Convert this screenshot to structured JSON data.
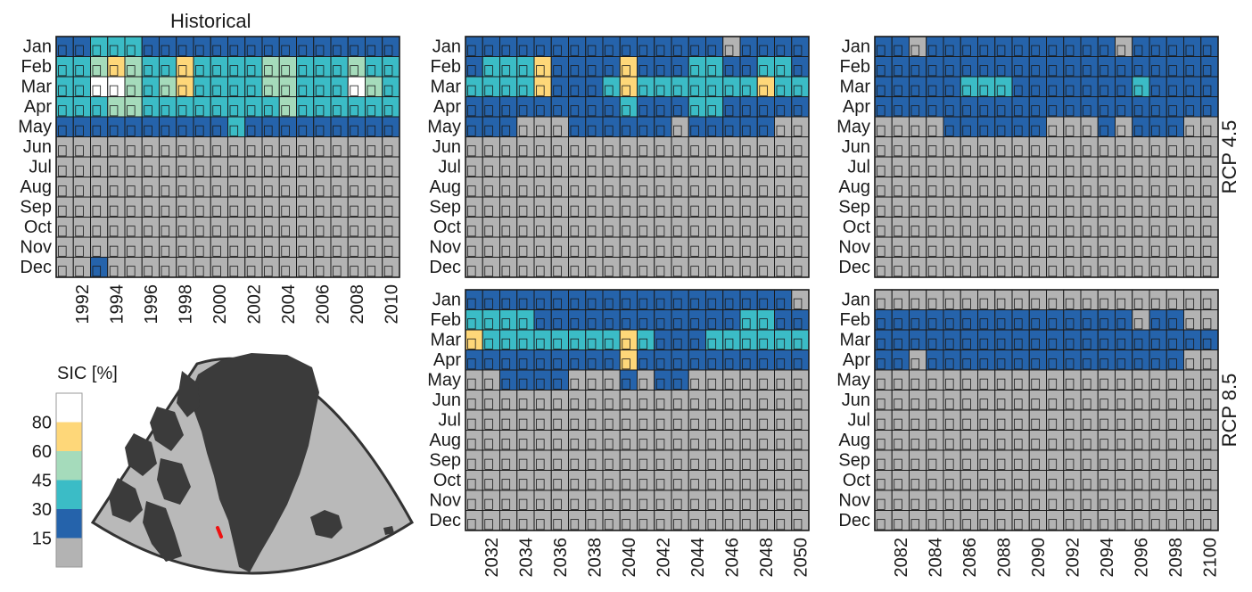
{
  "chart_data": {
    "type": "heatmap",
    "colorbar": {
      "title": "SIC [%]",
      "tick_labels": [
        "15",
        "30",
        "45",
        "60",
        "80"
      ],
      "colors": [
        "#b3b3b3",
        "#2563ab",
        "#3bbcc6",
        "#a5dbbb",
        "#fed779",
        "#ffffff"
      ]
    },
    "months": [
      "Jan",
      "Feb",
      "Mar",
      "Apr",
      "May",
      "Jun",
      "Jul",
      "Aug",
      "Sep",
      "Oct",
      "Nov",
      "Dec"
    ],
    "panels": [
      {
        "id": "hist",
        "title": "Historical",
        "row_label": "",
        "years": [
          1991,
          1992,
          1993,
          1994,
          1995,
          1996,
          1997,
          1998,
          1999,
          2000,
          2001,
          2002,
          2003,
          2004,
          2005,
          2006,
          2007,
          2008,
          2009,
          2010
        ],
        "x_tick_labels": [
          "1992",
          "1994",
          "1996",
          "1998",
          "2000",
          "2002",
          "2004",
          "2006",
          "2008",
          "2010"
        ],
        "class_rows": [
          "11222111111111111111",
          "22343224222233222322",
          "22553234222233222532",
          "22233222222223222222",
          "11111111112111111111",
          "00000000000000000000",
          "00000000000000000000",
          "00000000000000000000",
          "00000000000000000000",
          "00000000000000000000",
          "00000000000000000000",
          "00100000000000000000"
        ]
      },
      {
        "id": "rcp45-mid",
        "title": "",
        "row_label": "RCP 4.5",
        "years": [
          2031,
          2032,
          2033,
          2034,
          2035,
          2036,
          2037,
          2038,
          2039,
          2040,
          2041,
          2042,
          2043,
          2044,
          2045,
          2046,
          2047,
          2048,
          2049,
          2050
        ],
        "x_tick_labels": [],
        "class_rows": [
          "11111111111111101111",
          "12224111141112211221",
          "22224111242222222422",
          "11111111121112211111",
          "11100011111101111100",
          "00000000000000000000",
          "00000000000000000000",
          "00000000000000000000",
          "00000000000000000000",
          "00000000000000000000",
          "00000000000000000000",
          "00000000000000000000"
        ]
      },
      {
        "id": "rcp45-late",
        "title": "",
        "row_label": "",
        "years": [
          2081,
          2082,
          2083,
          2084,
          2085,
          2086,
          2087,
          2088,
          2089,
          2090,
          2091,
          2092,
          2093,
          2094,
          2095,
          2096,
          2097,
          2098,
          2099,
          2100
        ],
        "x_tick_labels": [],
        "class_rows": [
          "11011111111111011111",
          "11111111111111111111",
          "11111222111111121111",
          "11111111111111111111",
          "00001111110001011100",
          "00000000000000000000",
          "00000000000000000000",
          "00000000000000000000",
          "00000000000000000000",
          "00000000000000000000",
          "00000000000000000000",
          "00000000000000000000"
        ]
      },
      {
        "id": "rcp85-mid",
        "title": "",
        "row_label": "RCP 8.5",
        "years": [
          2031,
          2032,
          2033,
          2034,
          2035,
          2036,
          2037,
          2038,
          2039,
          2040,
          2041,
          2042,
          2043,
          2044,
          2045,
          2046,
          2047,
          2048,
          2049,
          2050
        ],
        "x_tick_labels": [
          "2032",
          "2034",
          "2036",
          "2038",
          "2040",
          "2042",
          "2044",
          "2046",
          "2048",
          "2050"
        ],
        "class_rows": [
          "11111111111111111110",
          "22221111111111112211",
          "42222222242111222222",
          "11111111141111111111",
          "00111100010110000000",
          "00000000000000000000",
          "00000000000000000000",
          "00000000000000000000",
          "00000000000000000000",
          "00000000000000000000",
          "00000000000000000000",
          "00000000000000000000"
        ]
      },
      {
        "id": "rcp85-late",
        "title": "",
        "row_label": "",
        "years": [
          2081,
          2082,
          2083,
          2084,
          2085,
          2086,
          2087,
          2088,
          2089,
          2090,
          2091,
          2092,
          2093,
          2094,
          2095,
          2096,
          2097,
          2098,
          2099,
          2100
        ],
        "x_tick_labels": [
          "2082",
          "2084",
          "2086",
          "2088",
          "2090",
          "2092",
          "2094",
          "2096",
          "2098",
          "2100"
        ],
        "class_rows": [
          "00000000000000000000",
          "11111111111111101100",
          "11111111111111111111",
          "11011111111111111100",
          "00000000000000000000",
          "00000000000000000000",
          "00000000000000000000",
          "00000000000000000000",
          "00000000000000000000",
          "00000000000000000000",
          "00000000000000000000",
          "00000000000000000000"
        ]
      }
    ],
    "inset_map": {
      "description_shown": false,
      "land_color": "#3b3b3b",
      "sea_color": "#b9b9b9",
      "marker_color": "#ee1111"
    }
  }
}
